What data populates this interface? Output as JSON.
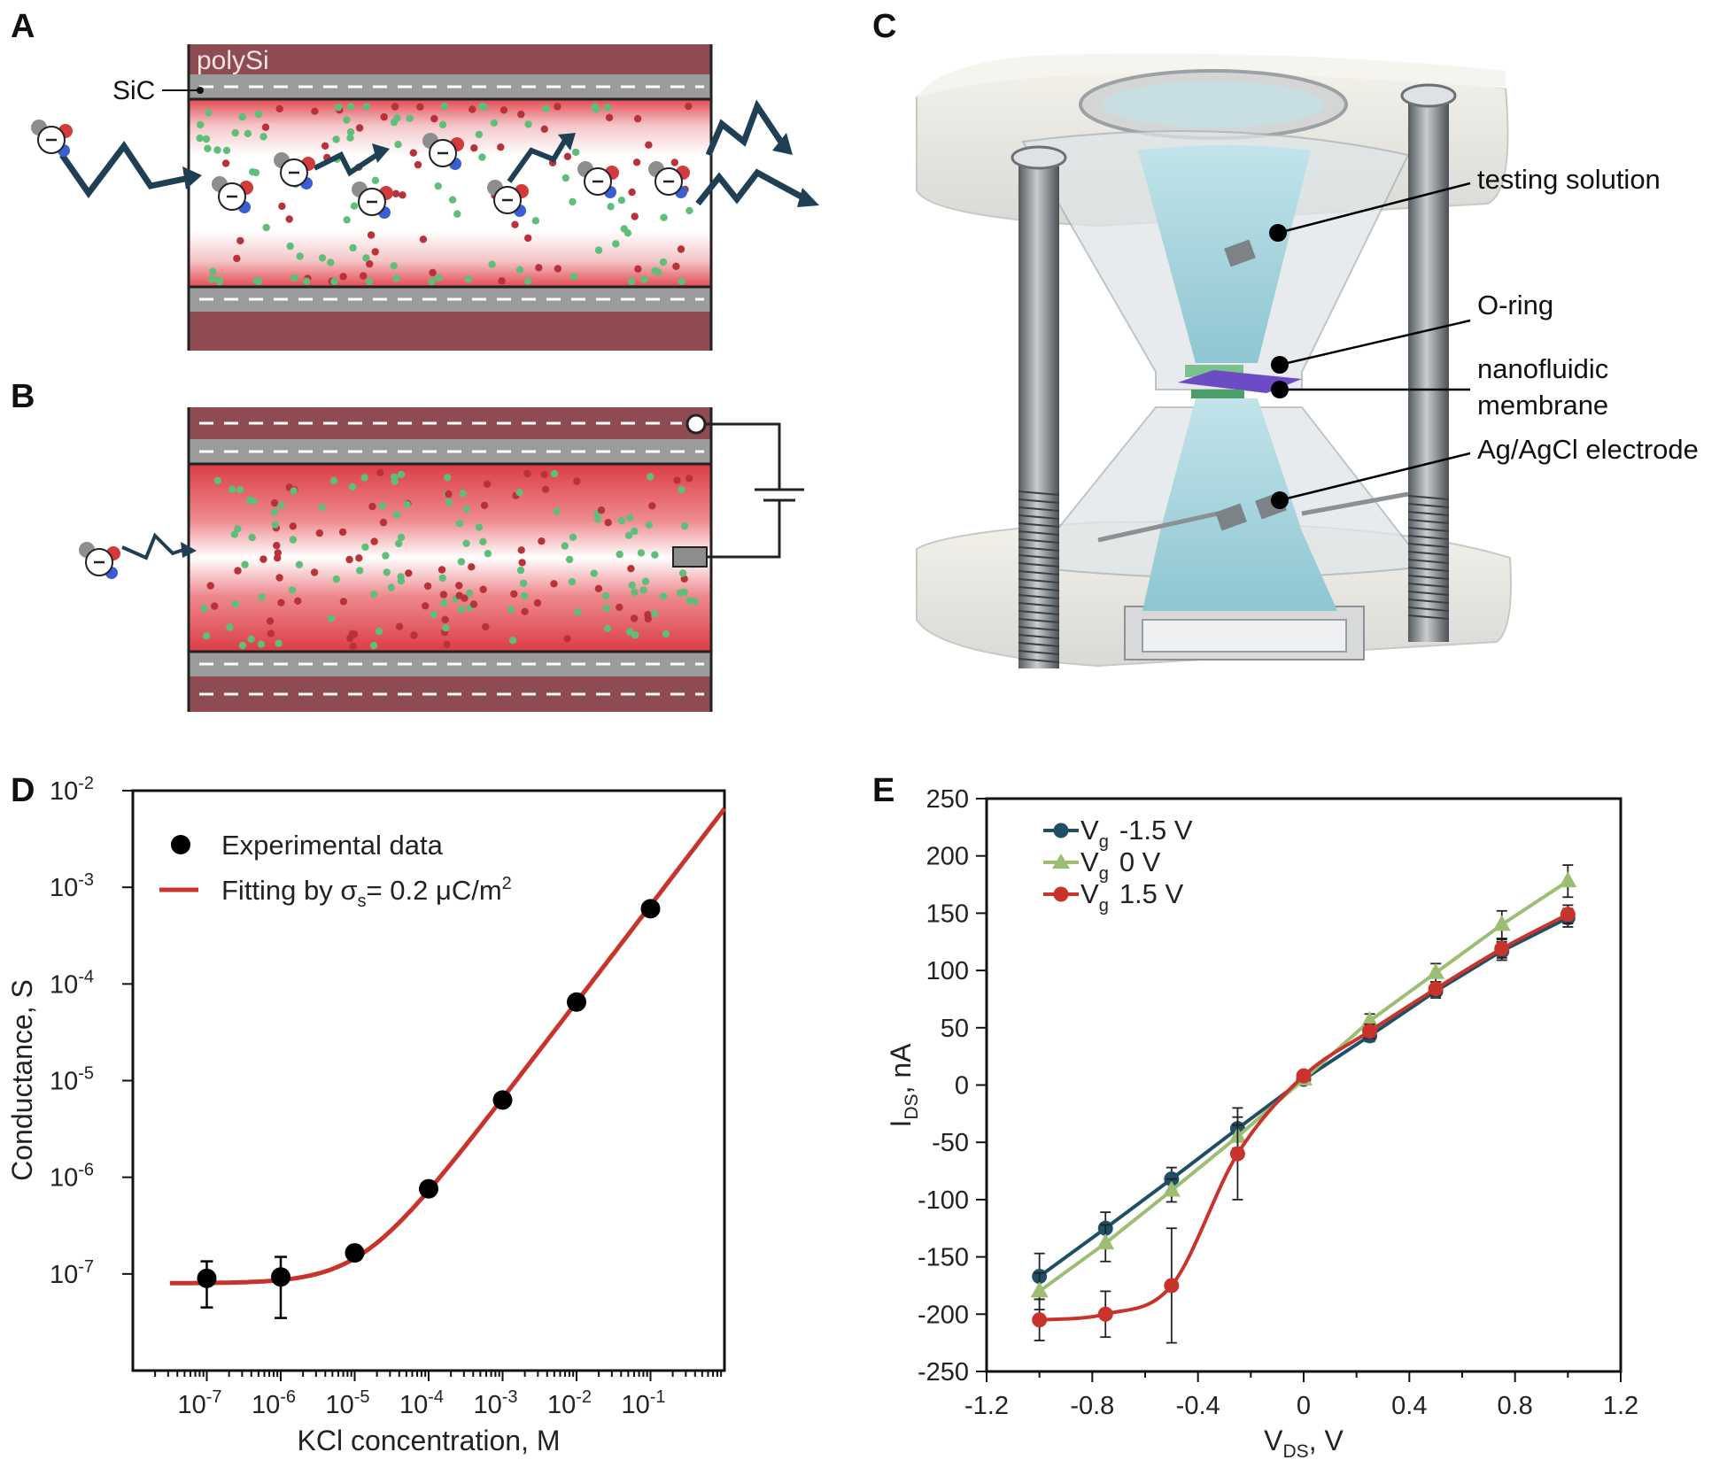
{
  "panels": {
    "a": "A",
    "b": "B",
    "c": "C",
    "d": "D",
    "e": "E"
  },
  "schematic": {
    "layer_top": "polySi",
    "layer_coating": "SiC",
    "colors": {
      "polysi": "#8f4b52",
      "sic": "#9b9b9b",
      "channel_red": "#e0454d",
      "anion": "#1f3f55"
    }
  },
  "setup": {
    "labels": {
      "testing_solution": "testing solution",
      "o_ring": "O-ring",
      "membrane_line1": "nanofluidic",
      "membrane_line2": "membrane",
      "electrode": "Ag/AgCl electrode"
    },
    "colors": {
      "solution": "#9fcfd8",
      "membrane": "#6c4cc4",
      "metal": "#6e7378"
    }
  },
  "chart_data": [
    {
      "panel": "D",
      "type": "scatter",
      "x_scale": "log",
      "y_scale": "log",
      "xlabel": "KCl concentration, M",
      "ylabel": "Conductance, S",
      "xlim": [
        1e-08,
        1
      ],
      "ylim": [
        1e-08,
        0.01
      ],
      "x_ticks": [
        "10^-7",
        "10^-6",
        "10^-5",
        "10^-4",
        "10^-3",
        "10^-2",
        "10^-1"
      ],
      "y_ticks": [
        "10^-7",
        "10^-6",
        "10^-5",
        "10^-4",
        "10^-3",
        "10^-2"
      ],
      "legend": {
        "experimental": "Experimental data",
        "fit_prefix": "Fitting by σ",
        "fit_sub": "s",
        "fit_mid": "= 0.2 μC/m",
        "fit_sup": "2",
        "placement": "top-left"
      },
      "series": [
        {
          "name": "Experimental data",
          "color": "#000000",
          "x": [
            1e-07,
            1e-06,
            1e-05,
            0.0001,
            0.001,
            0.01,
            0.1
          ],
          "y": [
            9e-08,
            9.3e-08,
            1.65e-07,
            7.6e-07,
            6.3e-06,
            6.5e-05,
            0.0006
          ],
          "err_low": [
            4.5e-08,
            3.5e-08,
            1.4e-07,
            7.2e-07,
            6.1e-06,
            6.3e-05,
            0.00058
          ],
          "err_high": [
            1.35e-07,
            1.5e-07,
            1.85e-07,
            8e-07,
            6.5e-06,
            6.7e-05,
            0.00062
          ]
        },
        {
          "name": "Fitting by σs= 0.2 μC/m2",
          "color": "#c8332b",
          "model": {
            "baseline": 8e-08,
            "slope": 0.0065
          }
        }
      ]
    },
    {
      "panel": "E",
      "type": "line",
      "xlabel_main": "V",
      "xlabel_sub": "DS",
      "xlabel_tail": ", V",
      "ylabel_main": "I",
      "ylabel_sub": "DS",
      "ylabel_tail": ", nA",
      "xlim": [
        -1.2,
        1.2
      ],
      "ylim": [
        -250,
        250
      ],
      "x_ticks": [
        -1.2,
        -0.8,
        -0.4,
        0,
        0.4,
        0.8,
        1.2
      ],
      "x_tick_labels": [
        "-1.2",
        "-0.8",
        "-0.4",
        "0",
        "0.4",
        "0.8",
        "1.2"
      ],
      "y_ticks": [
        -250,
        -200,
        -150,
        -100,
        -50,
        0,
        50,
        100,
        150,
        200,
        250
      ],
      "legend_placement": "top-left",
      "x": [
        -1.0,
        -0.75,
        -0.5,
        -0.25,
        0,
        0.25,
        0.5,
        0.75,
        1.0
      ],
      "series": [
        {
          "name": "-1.5 V",
          "legend_main": "V",
          "legend_sub": "g",
          "legend_val": "-1.5 V",
          "color": "#1e4f66",
          "marker": "circle",
          "smooth": false,
          "y": [
            -167,
            -125,
            -82,
            -38,
            5,
            43,
            82,
            117,
            146
          ],
          "err": [
            20,
            14,
            10,
            10,
            4,
            5,
            6,
            8,
            8
          ]
        },
        {
          "name": "0 V",
          "legend_main": "V",
          "legend_sub": "g",
          "legend_val": "0 V",
          "color": "#9cbd72",
          "marker": "triangle",
          "smooth": false,
          "y": [
            -180,
            -138,
            -92,
            -45,
            5,
            56,
            98,
            140,
            178
          ],
          "err": [
            16,
            16,
            10,
            10,
            4,
            6,
            8,
            12,
            14
          ]
        },
        {
          "name": "1.5 V",
          "legend_main": "V",
          "legend_sub": "g",
          "legend_val": "1.5 V",
          "color": "#c8332b",
          "marker": "circle",
          "smooth": true,
          "y": [
            -205,
            -200,
            -175,
            -60,
            8,
            47,
            84,
            119,
            149
          ],
          "err": [
            18,
            20,
            50,
            40,
            4,
            6,
            6,
            8,
            8
          ]
        }
      ]
    }
  ]
}
